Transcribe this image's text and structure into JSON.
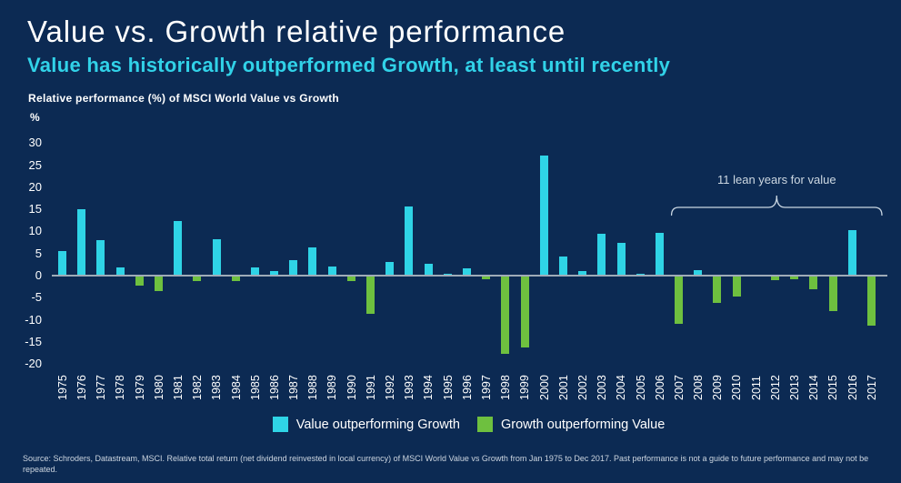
{
  "header": {
    "title": "Value vs. Growth relative performance",
    "subtitle": "Value has historically outperformed Growth, at least until recently"
  },
  "chart_data": {
    "type": "bar",
    "title": "Relative performance (%) of MSCI World Value vs Growth",
    "unit_label": "%",
    "ylim": [
      -20,
      30
    ],
    "yticks": [
      30,
      25,
      20,
      15,
      10,
      5,
      0,
      -5,
      -10,
      -15,
      -20
    ],
    "grid": false,
    "categories": [
      1975,
      1976,
      1977,
      1978,
      1979,
      1980,
      1981,
      1982,
      1983,
      1984,
      1985,
      1986,
      1987,
      1988,
      1989,
      1990,
      1991,
      1992,
      1993,
      1994,
      1995,
      1996,
      1997,
      1998,
      1999,
      2000,
      2001,
      2002,
      2003,
      2004,
      2005,
      2006,
      2007,
      2008,
      2009,
      2010,
      2011,
      2012,
      2013,
      2014,
      2015,
      2016,
      2017
    ],
    "values": [
      5.5,
      15,
      8,
      1.8,
      -2.2,
      -3.5,
      12.3,
      -1.2,
      8.3,
      -1.2,
      1.8,
      1.0,
      3.6,
      6.4,
      2.1,
      -1.2,
      -8.6,
      3.0,
      15.6,
      2.7,
      0.4,
      1.6,
      -0.8,
      -17.7,
      -16.2,
      27.1,
      4.4,
      1.0,
      9.5,
      7.4,
      0.4,
      9.6,
      -10.9,
      1.2,
      -6.2,
      -4.8,
      -0.2,
      -1.0,
      -0.8,
      -3.0,
      -8.1,
      10.2,
      -11.3
    ],
    "positive_color": "#2fd4e6",
    "negative_color": "#6ec03f",
    "annotation": {
      "label": "11 lean years for value",
      "span_years": [
        2007,
        2017
      ]
    }
  },
  "legend": {
    "value_label": "Value outperforming Growth",
    "growth_label": "Growth outperforming Value"
  },
  "footer": {
    "source": "Source: Schroders, Datastream, MSCI. Relative total return (net dividend reinvested in local currency) of MSCI World Value vs Growth from Jan 1975 to Dec 2017. Past performance is not a guide to future performance and may not be repeated."
  }
}
